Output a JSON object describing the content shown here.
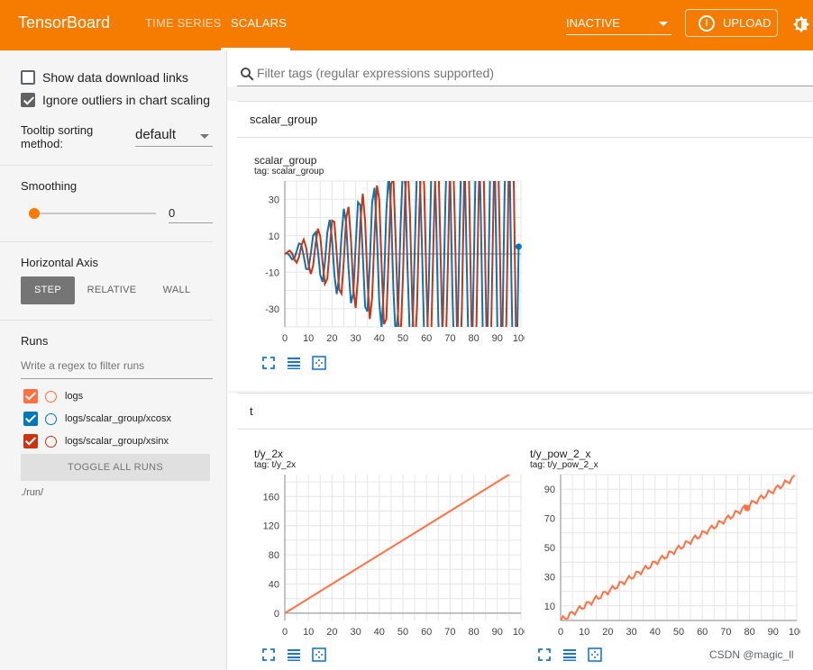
{
  "header": {
    "brand": "TensorBoard",
    "tabs": [
      {
        "label": "TIME SERIES"
      },
      {
        "label": "SCALARS"
      }
    ],
    "run_select": "INACTIVE",
    "upload_label": "UPLOAD",
    "colors": {
      "bar": "#f57c00"
    }
  },
  "sidebar": {
    "show_download_links": "Show data download links",
    "ignore_outliers": "Ignore outliers in chart scaling",
    "tooltip_sort_label": "Tooltip sorting method:",
    "tooltip_sort_value": "default",
    "smoothing_title": "Smoothing",
    "smoothing_value": "0",
    "smoothing_fraction": 0,
    "axis_title": "Horizontal Axis",
    "axis_options": [
      "STEP",
      "RELATIVE",
      "WALL"
    ],
    "runs_title": "Runs",
    "runs_filter_placeholder": "Write a regex to filter runs",
    "runs": [
      {
        "name": "logs",
        "color": "#ff7043",
        "checked": true
      },
      {
        "name": "logs/scalar_group/xcosx",
        "color": "#0077bb",
        "checked": true
      },
      {
        "name": "logs/scalar_group/xsinx",
        "color": "#cc3311",
        "checked": true
      }
    ],
    "toggle_all": "TOGGLE ALL RUNS",
    "logdir": "./run/"
  },
  "main": {
    "filter_placeholder": "Filter tags (regular expressions supported)",
    "groups": [
      {
        "name": "scalar_group"
      },
      {
        "name": "t"
      }
    ],
    "watermark": "CSDN @magic_ll"
  },
  "chart_data": [
    {
      "type": "line",
      "title": "scalar_group",
      "tag": "tag: scalar_group",
      "xlim": [
        0,
        100
      ],
      "ylim": [
        -40,
        40
      ],
      "xticks": [
        0,
        10,
        20,
        30,
        40,
        50,
        60,
        70,
        80,
        90,
        100
      ],
      "yticks": [
        30,
        10,
        -10,
        -30
      ],
      "grid": true,
      "series": [
        {
          "name": "logs/scalar_group/xcosx",
          "color": "#0077bb",
          "function": "x*cos(x)",
          "x_range": [
            0,
            99
          ]
        },
        {
          "name": "logs/scalar_group/xsinx",
          "color": "#cc3311",
          "function": "x*sin(x)",
          "x_range": [
            0,
            99
          ]
        }
      ],
      "highlight": {
        "series": "logs/scalar_group/xcosx",
        "x": 99,
        "y": 4
      }
    },
    {
      "type": "line",
      "title": "t/y_2x",
      "tag": "tag: t/y_2x",
      "xlim": [
        0,
        100
      ],
      "ylim": [
        -10,
        190
      ],
      "xticks": [
        0,
        10,
        20,
        30,
        40,
        50,
        60,
        70,
        80,
        90,
        100
      ],
      "yticks": [
        160,
        120,
        80,
        40,
        0
      ],
      "grid": true,
      "series": [
        {
          "name": "logs",
          "color": "#ff7043",
          "x": [
            0,
            99
          ],
          "y": [
            0,
            198
          ]
        }
      ],
      "highlight": {
        "series": "logs",
        "x": 99,
        "y": 198
      }
    },
    {
      "type": "line",
      "title": "t/y_pow_2_x",
      "tag": "tag: t/y_pow_2_x",
      "xlim": [
        0,
        100
      ],
      "ylim": [
        0,
        100
      ],
      "xticks": [
        0,
        10,
        20,
        30,
        40,
        50,
        60,
        70,
        80,
        90,
        100
      ],
      "yticks": [
        90,
        70,
        50,
        30,
        10
      ],
      "grid": true,
      "series": [
        {
          "name": "logs",
          "color": "#ff7043",
          "x_range": [
            0,
            99
          ],
          "trend": [
            0,
            98
          ],
          "ripple": 2
        }
      ],
      "highlight": {
        "series": "logs",
        "x": 79,
        "y": 77
      }
    }
  ]
}
